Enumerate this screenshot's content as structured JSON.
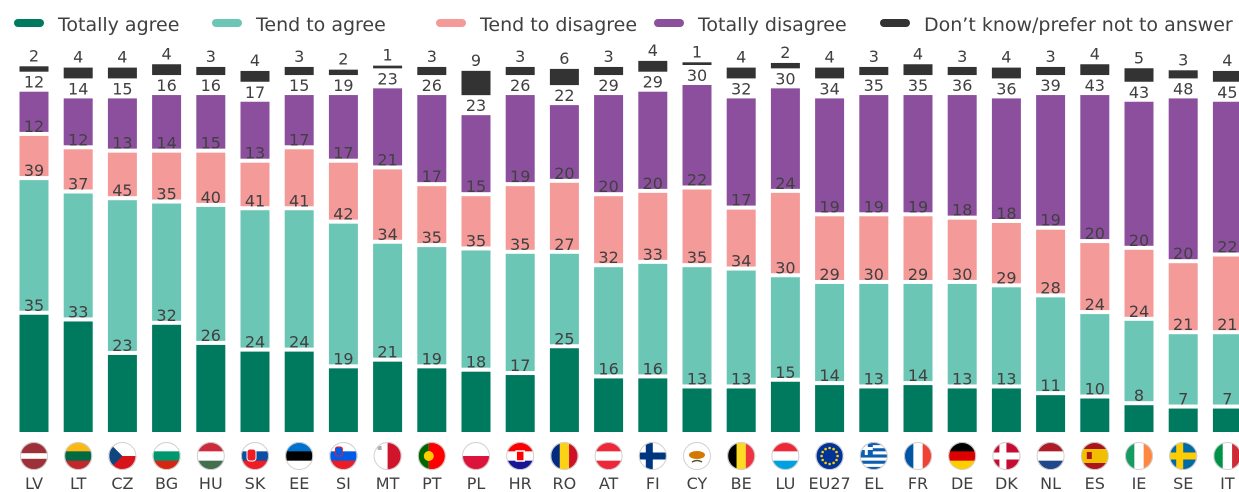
{
  "chart_data": {
    "type": "bar",
    "stacked": true,
    "categories": [
      "LV",
      "LT",
      "CZ",
      "BG",
      "HU",
      "SK",
      "EE",
      "SI",
      "MT",
      "PT",
      "PL",
      "HR",
      "RO",
      "AT",
      "FI",
      "CY",
      "BE",
      "LU",
      "EU27",
      "EL",
      "FR",
      "DE",
      "DK",
      "NL",
      "ES",
      "IE",
      "SE",
      "IT"
    ],
    "series": [
      {
        "name": "Totally agree",
        "color": "#007a5e",
        "values": [
          35,
          33,
          23,
          32,
          26,
          24,
          24,
          19,
          21,
          19,
          18,
          17,
          25,
          16,
          16,
          13,
          13,
          15,
          14,
          13,
          14,
          13,
          13,
          11,
          10,
          8,
          7,
          7
        ]
      },
      {
        "name": "Tend to agree",
        "color": "#6cc6b5",
        "values": [
          39,
          37,
          45,
          35,
          40,
          41,
          41,
          42,
          34,
          35,
          35,
          35,
          27,
          32,
          33,
          35,
          34,
          30,
          29,
          30,
          29,
          30,
          29,
          28,
          24,
          24,
          21,
          21
        ]
      },
      {
        "name": "Tend to disagree",
        "color": "#f49a98",
        "values": [
          12,
          12,
          13,
          14,
          15,
          13,
          17,
          17,
          21,
          17,
          15,
          19,
          20,
          20,
          20,
          22,
          17,
          24,
          19,
          19,
          19,
          18,
          18,
          19,
          20,
          20,
          20,
          22
        ]
      },
      {
        "name": "Totally disagree",
        "color": "#8c4f9e",
        "values": [
          12,
          14,
          15,
          16,
          16,
          17,
          15,
          19,
          23,
          26,
          23,
          26,
          22,
          29,
          29,
          30,
          32,
          30,
          34,
          35,
          35,
          36,
          36,
          39,
          43,
          43,
          48,
          45
        ]
      },
      {
        "name": "Don’t know/prefer not to answer",
        "color": "#333333",
        "values": [
          2,
          4,
          4,
          4,
          3,
          4,
          3,
          2,
          1,
          3,
          9,
          3,
          6,
          3,
          4,
          1,
          4,
          2,
          4,
          3,
          4,
          3,
          4,
          3,
          4,
          5,
          3,
          4
        ]
      }
    ],
    "legend_position": "top",
    "grid": false
  },
  "flag_icons": [
    "latvia-flag",
    "lithuania-flag",
    "czechia-flag",
    "bulgaria-flag",
    "hungary-flag",
    "slovakia-flag",
    "estonia-flag",
    "slovenia-flag",
    "malta-flag",
    "portugal-flag",
    "poland-flag",
    "croatia-flag",
    "romania-flag",
    "austria-flag",
    "finland-flag",
    "cyprus-flag",
    "belgium-flag",
    "luxembourg-flag",
    "eu-flag",
    "greece-flag",
    "france-flag",
    "germany-flag",
    "denmark-flag",
    "netherlands-flag",
    "spain-flag",
    "ireland-flag",
    "sweden-flag",
    "italy-flag"
  ]
}
